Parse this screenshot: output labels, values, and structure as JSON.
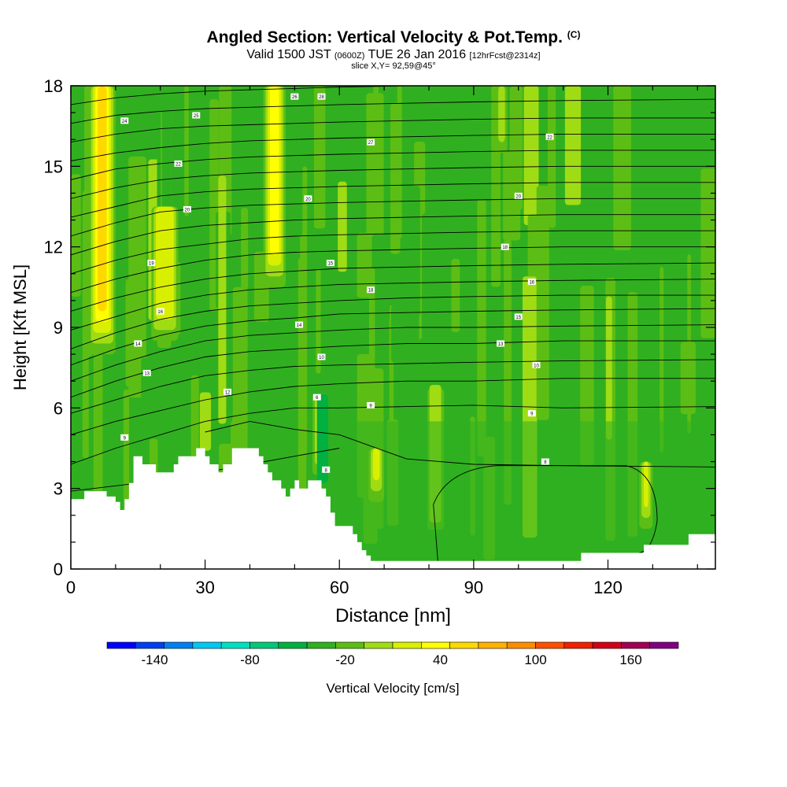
{
  "title": {
    "main": "Angled Section: Vertical Velocity & Pot.Temp.",
    "tag": "(C)"
  },
  "subtitle": {
    "valid": "Valid 1500 JST",
    "utc": "(0600Z)",
    "date": "TUE 26 Jan 2016",
    "fcst": "[12hrFcst@2314z]"
  },
  "slice_label": "slice X,Y= 92,59@45°",
  "colors": {
    "scale": [
      "#0000ff",
      "#0040f0",
      "#0080f0",
      "#00c8f0",
      "#00e0c0",
      "#00c878",
      "#00b040",
      "#30b020",
      "#5cbe14",
      "#a0dc14",
      "#d8f000",
      "#ffff00",
      "#ffd800",
      "#ffb000",
      "#ff8c00",
      "#ff5000",
      "#f02000",
      "#d00018",
      "#a00050",
      "#800080"
    ],
    "contour": "#000000",
    "terrain": "#ffffff"
  },
  "chart_data": {
    "type": "heatmap",
    "title": "Angled Section: Vertical Velocity & Pot.Temp. (C)",
    "xlabel": "Distance [nm]",
    "ylabel": "Height [Kft MSL]",
    "xlim": [
      0,
      144
    ],
    "ylim": [
      0,
      18
    ],
    "xticks": [
      0,
      30,
      60,
      90,
      120
    ],
    "yticks": [
      0,
      3,
      6,
      9,
      12,
      15,
      18
    ],
    "colorbar": {
      "label": "Vertical Velocity [cm/s]",
      "min": -170,
      "max": 190,
      "step": 20,
      "ticks": [
        -140,
        -80,
        -20,
        40,
        100,
        160
      ]
    },
    "updrafts": [
      {
        "x": 7,
        "x0": 4,
        "x1": 10,
        "y0": 8,
        "y1": 18,
        "w": 100
      },
      {
        "x": 21,
        "x0": 18,
        "x1": 24,
        "y0": 8.5,
        "y1": 13.5,
        "w": 45
      },
      {
        "x": 45.5,
        "x0": 43,
        "x1": 48,
        "y0": 10.5,
        "y1": 18,
        "w": 80
      },
      {
        "x": 55,
        "x0": 54,
        "x1": 56,
        "y0": 3.5,
        "y1": 6.5,
        "w": 45
      },
      {
        "x": 68,
        "x0": 66.5,
        "x1": 70,
        "y0": 2.5,
        "y1": 4.5,
        "w": 45
      },
      {
        "x": 96,
        "x0": 95,
        "x1": 97.5,
        "y0": 15.5,
        "y1": 18,
        "w": 30
      },
      {
        "x": 128.5,
        "x0": 127,
        "x1": 130,
        "y0": 1.5,
        "y1": 4,
        "w": 45
      }
    ],
    "downdrafts": [
      {
        "x": 20,
        "x0": 18,
        "x1": 23,
        "y0": 17,
        "y1": 18,
        "w": -30
      },
      {
        "x": 56,
        "x0": 55,
        "x1": 57.5,
        "y0": 3.2,
        "y1": 6.5,
        "w": -35
      }
    ],
    "theta_contours": [
      {
        "level": 6,
        "y": [
          2.9,
          3.1,
          3.3,
          3.6,
          3.9,
          4.2,
          4.5
        ]
      },
      {
        "level": 8,
        "y": [
          null,
          null,
          null,
          5.1,
          5.5,
          5.2,
          5.0,
          4.1,
          3.9,
          3.85,
          3.8
        ]
      },
      {
        "level": 9,
        "y": [
          3.9,
          4.5,
          5.0,
          5.5,
          5.8,
          6.0,
          6.0,
          6.05,
          6.1,
          6.0,
          6.05
        ]
      },
      {
        "level": 10,
        "y": [
          5.0,
          5.5,
          5.9,
          6.3,
          6.6,
          6.8,
          6.9,
          7.0,
          7.0,
          7.1,
          7.1
        ]
      },
      {
        "level": 11,
        "y": [
          5.8,
          6.3,
          6.8,
          7.2,
          7.4,
          7.55,
          7.6,
          7.65,
          7.7,
          7.75,
          7.8
        ]
      },
      {
        "level": 12,
        "y": [
          6.4,
          7.0,
          7.5,
          7.9,
          8.1,
          8.2,
          8.3,
          8.4,
          8.4,
          8.5,
          8.5
        ]
      },
      {
        "level": 13,
        "y": [
          7.0,
          7.6,
          8.1,
          8.5,
          8.7,
          8.8,
          8.9,
          9.0,
          9.0,
          9.05,
          9.1
        ]
      },
      {
        "level": 14,
        "y": [
          7.6,
          8.2,
          8.7,
          9.05,
          9.25,
          9.35,
          9.5,
          9.55,
          9.6,
          9.65,
          9.7
        ]
      },
      {
        "level": 15,
        "y": [
          8.2,
          8.8,
          9.3,
          9.6,
          9.8,
          9.9,
          10.0,
          10.1,
          10.15,
          10.2,
          10.2
        ]
      },
      {
        "level": 16,
        "y": [
          8.9,
          9.4,
          9.9,
          10.2,
          10.4,
          10.5,
          10.6,
          10.65,
          10.7,
          10.75,
          10.8
        ]
      },
      {
        "level": 17,
        "y": [
          9.6,
          10.1,
          10.5,
          10.8,
          11.0,
          11.1,
          11.2,
          11.25,
          11.3,
          11.35,
          11.4
        ]
      },
      {
        "level": 18,
        "y": [
          10.3,
          10.8,
          11.2,
          11.5,
          11.7,
          11.8,
          11.85,
          11.9,
          11.95,
          12.0,
          12.0
        ]
      },
      {
        "level": 19,
        "y": [
          11.0,
          11.5,
          11.9,
          12.1,
          12.3,
          12.4,
          12.45,
          12.5,
          12.55,
          12.6,
          12.6
        ]
      },
      {
        "level": 20,
        "y": [
          11.7,
          12.2,
          12.6,
          12.8,
          12.9,
          13.0,
          13.05,
          13.1,
          13.15,
          13.2,
          13.2
        ]
      },
      {
        "level": 21,
        "y": [
          12.4,
          12.9,
          13.3,
          13.45,
          13.55,
          13.6,
          13.65,
          13.7,
          13.75,
          13.8,
          13.8
        ]
      },
      {
        "level": 22,
        "y": [
          13.1,
          13.5,
          13.9,
          14.05,
          14.15,
          14.2,
          14.25,
          14.3,
          14.35,
          14.4,
          14.4
        ]
      },
      {
        "level": 23,
        "y": [
          13.8,
          14.2,
          14.5,
          14.65,
          14.75,
          14.8,
          14.85,
          14.9,
          14.95,
          15.0,
          15.0
        ]
      },
      {
        "level": 24,
        "y": [
          14.5,
          14.9,
          15.1,
          15.25,
          15.35,
          15.4,
          15.45,
          15.5,
          15.55,
          15.6,
          15.6
        ]
      },
      {
        "level": 25,
        "y": [
          15.2,
          15.5,
          15.7,
          15.85,
          15.95,
          16.0,
          16.05,
          16.1,
          16.15,
          16.2,
          16.2
        ]
      },
      {
        "level": 26,
        "y": [
          15.9,
          16.2,
          16.4,
          16.5,
          16.55,
          16.6,
          16.65,
          16.7,
          16.75,
          16.8,
          16.8
        ]
      },
      {
        "level": 27,
        "y": [
          16.6,
          16.9,
          17.05,
          17.15,
          17.2,
          17.25,
          17.3,
          17.35,
          17.4,
          17.45,
          17.5
        ]
      },
      {
        "level": 28,
        "y": [
          17.3,
          17.55,
          17.7,
          17.8,
          17.85,
          17.9,
          17.95,
          18.0,
          18.0,
          18.0,
          18.0
        ]
      }
    ],
    "contour_x": [
      0,
      10,
      20,
      30,
      40,
      50,
      60,
      75,
      90,
      110,
      144
    ],
    "terrain": [
      [
        0,
        2.6
      ],
      [
        3,
        2.6
      ],
      [
        3,
        2.9
      ],
      [
        8,
        2.9
      ],
      [
        8,
        2.7
      ],
      [
        10,
        2.7
      ],
      [
        10,
        2.5
      ],
      [
        11,
        2.5
      ],
      [
        11,
        2.2
      ],
      [
        12,
        2.2
      ],
      [
        12,
        2.6
      ],
      [
        13,
        2.6
      ],
      [
        13,
        3.2
      ],
      [
        14,
        3.2
      ],
      [
        14,
        4.2
      ],
      [
        16,
        4.2
      ],
      [
        16,
        3.9
      ],
      [
        19,
        3.9
      ],
      [
        19,
        3.6
      ],
      [
        23,
        3.6
      ],
      [
        23,
        3.9
      ],
      [
        24,
        3.9
      ],
      [
        24,
        4.2
      ],
      [
        28,
        4.2
      ],
      [
        28,
        4.5
      ],
      [
        30,
        4.5
      ],
      [
        30,
        4.2
      ],
      [
        31,
        4.2
      ],
      [
        31,
        3.9
      ],
      [
        33,
        3.9
      ],
      [
        33,
        3.6
      ],
      [
        34,
        3.6
      ],
      [
        34,
        3.9
      ],
      [
        36,
        3.9
      ],
      [
        36,
        4.5
      ],
      [
        42,
        4.5
      ],
      [
        42,
        4.2
      ],
      [
        43,
        4.2
      ],
      [
        43,
        3.9
      ],
      [
        44,
        3.9
      ],
      [
        44,
        3.6
      ],
      [
        45,
        3.6
      ],
      [
        45,
        3.3
      ],
      [
        47,
        3.3
      ],
      [
        47,
        3.0
      ],
      [
        48,
        3.0
      ],
      [
        48,
        2.7
      ],
      [
        49,
        2.7
      ],
      [
        49,
        3.0
      ],
      [
        50,
        3.0
      ],
      [
        50,
        3.3
      ],
      [
        51,
        3.3
      ],
      [
        51,
        3.0
      ],
      [
        53,
        3.0
      ],
      [
        53,
        3.3
      ],
      [
        56,
        3.3
      ],
      [
        56,
        3.0
      ],
      [
        57,
        3.0
      ],
      [
        57,
        2.7
      ],
      [
        58,
        2.7
      ],
      [
        58,
        2.1
      ],
      [
        59,
        2.1
      ],
      [
        59,
        1.6
      ],
      [
        63,
        1.6
      ],
      [
        63,
        1.3
      ],
      [
        64,
        1.3
      ],
      [
        64,
        1.0
      ],
      [
        65,
        1.0
      ],
      [
        65,
        0.7
      ],
      [
        66,
        0.7
      ],
      [
        66,
        0.5
      ],
      [
        67,
        0.5
      ],
      [
        67,
        0.3
      ],
      [
        114,
        0.3
      ],
      [
        114,
        0.6
      ],
      [
        128,
        0.6
      ],
      [
        128,
        0.9
      ],
      [
        138,
        0.9
      ],
      [
        138,
        1.3
      ],
      [
        144,
        1.3
      ]
    ],
    "contour_labels": [
      {
        "x": 12,
        "y": 16.7,
        "text": "24"
      },
      {
        "x": 28,
        "y": 16.9,
        "text": "25"
      },
      {
        "x": 24,
        "y": 15.1,
        "text": "22"
      },
      {
        "x": 26,
        "y": 13.4,
        "text": "20"
      },
      {
        "x": 18,
        "y": 11.4,
        "text": "19"
      },
      {
        "x": 20,
        "y": 9.6,
        "text": "16"
      },
      {
        "x": 15,
        "y": 8.4,
        "text": "14"
      },
      {
        "x": 17,
        "y": 7.3,
        "text": "13"
      },
      {
        "x": 35,
        "y": 6.6,
        "text": "12"
      },
      {
        "x": 12,
        "y": 4.9,
        "text": "9"
      },
      {
        "x": 53,
        "y": 13.8,
        "text": "20"
      },
      {
        "x": 58,
        "y": 11.4,
        "text": "15"
      },
      {
        "x": 51,
        "y": 9.1,
        "text": "14"
      },
      {
        "x": 56,
        "y": 7.9,
        "text": "10"
      },
      {
        "x": 55,
        "y": 6.4,
        "text": "6"
      },
      {
        "x": 67,
        "y": 10.4,
        "text": "18"
      },
      {
        "x": 67,
        "y": 6.1,
        "text": "9"
      },
      {
        "x": 56,
        "y": 17.6,
        "text": "28"
      },
      {
        "x": 67,
        "y": 15.9,
        "text": "27"
      },
      {
        "x": 100,
        "y": 13.9,
        "text": "20"
      },
      {
        "x": 97,
        "y": 12.0,
        "text": "18"
      },
      {
        "x": 103,
        "y": 10.7,
        "text": "16"
      },
      {
        "x": 100,
        "y": 9.4,
        "text": "15"
      },
      {
        "x": 96,
        "y": 8.4,
        "text": "13"
      },
      {
        "x": 104,
        "y": 7.6,
        "text": "10"
      },
      {
        "x": 103,
        "y": 5.8,
        "text": "9"
      },
      {
        "x": 106,
        "y": 4.0,
        "text": "8"
      },
      {
        "x": 107,
        "y": 16.1,
        "text": "22"
      },
      {
        "x": 57,
        "y": 3.7,
        "text": "8"
      },
      {
        "x": 50,
        "y": 17.6,
        "text": "26"
      }
    ]
  }
}
